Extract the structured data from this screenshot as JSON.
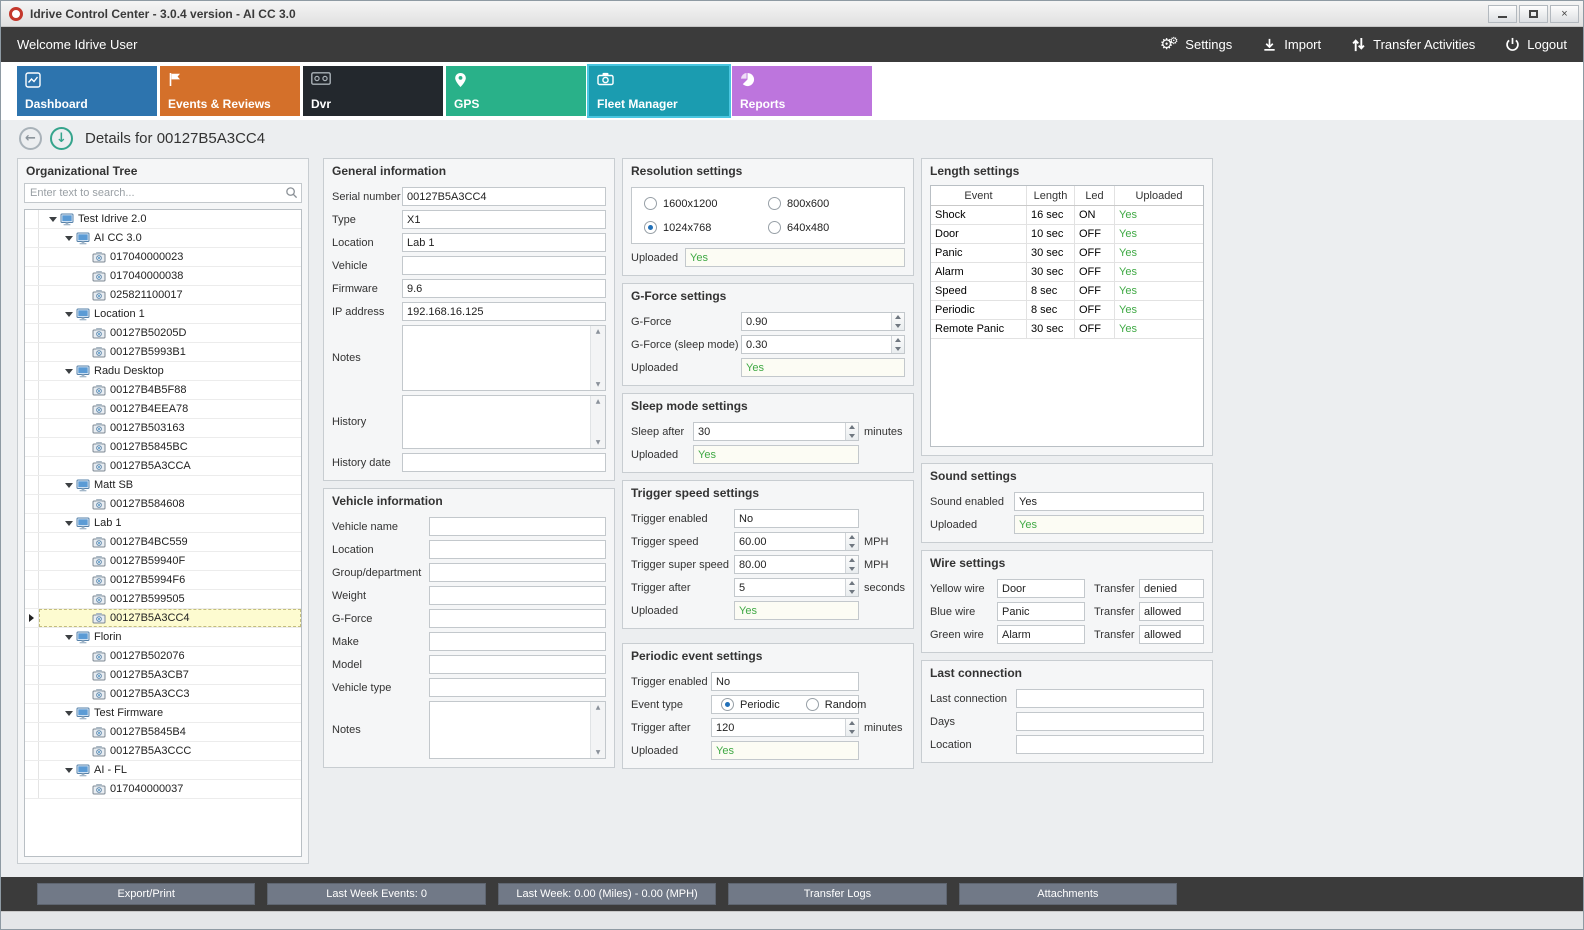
{
  "window": {
    "title": "Idrive Control Center - 3.0.4 version - AI CC 3.0"
  },
  "topbar": {
    "welcome": "Welcome Idrive User",
    "actions": [
      {
        "id": "settings",
        "label": "Settings"
      },
      {
        "id": "import",
        "label": "Import"
      },
      {
        "id": "transfer-activities",
        "label": "Transfer Activities"
      },
      {
        "id": "logout",
        "label": "Logout"
      }
    ]
  },
  "tabs": [
    {
      "id": "dashboard",
      "label": "Dashboard",
      "color": "#2d74ae",
      "active": false
    },
    {
      "id": "events-reviews",
      "label": "Events & Reviews",
      "color": "#d4702a",
      "active": false
    },
    {
      "id": "dvr",
      "label": "Dvr",
      "color": "#23282d",
      "active": false
    },
    {
      "id": "gps",
      "label": "GPS",
      "color": "#29b189",
      "active": false
    },
    {
      "id": "fleet-manager",
      "label": "Fleet Manager",
      "color": "#1b9cb0",
      "active": true
    },
    {
      "id": "reports",
      "label": "Reports",
      "color": "#bd75dd",
      "active": false
    }
  ],
  "details_header": {
    "title": "Details for 00127B5A3CC4"
  },
  "org_tree": {
    "title": "Organizational Tree",
    "search_placeholder": "Enter text to search...",
    "items": [
      {
        "label": "Test Idrive 2.0",
        "level": 0,
        "type": "group"
      },
      {
        "label": "AI CC 3.0",
        "level": 1,
        "type": "group"
      },
      {
        "label": "017040000023",
        "level": 2,
        "type": "device"
      },
      {
        "label": "017040000038",
        "level": 2,
        "type": "device"
      },
      {
        "label": "025821100017",
        "level": 2,
        "type": "device"
      },
      {
        "label": "Location 1",
        "level": 1,
        "type": "group"
      },
      {
        "label": "00127B50205D",
        "level": 2,
        "type": "device"
      },
      {
        "label": "00127B5993B1",
        "level": 2,
        "type": "device"
      },
      {
        "label": "Radu Desktop",
        "level": 1,
        "type": "group"
      },
      {
        "label": "00127B4B5F88",
        "level": 2,
        "type": "device"
      },
      {
        "label": "00127B4EEA78",
        "level": 2,
        "type": "device"
      },
      {
        "label": "00127B503163",
        "level": 2,
        "type": "device"
      },
      {
        "label": "00127B5845BC",
        "level": 2,
        "type": "device"
      },
      {
        "label": "00127B5A3CCA",
        "level": 2,
        "type": "device"
      },
      {
        "label": "Matt SB",
        "level": 1,
        "type": "group"
      },
      {
        "label": "00127B584608",
        "level": 2,
        "type": "device"
      },
      {
        "label": "Lab 1",
        "level": 1,
        "type": "group"
      },
      {
        "label": "00127B4BC559",
        "level": 2,
        "type": "device"
      },
      {
        "label": "00127B59940F",
        "level": 2,
        "type": "device"
      },
      {
        "label": "00127B5994F6",
        "level": 2,
        "type": "device"
      },
      {
        "label": "00127B599505",
        "level": 2,
        "type": "device"
      },
      {
        "label": "00127B5A3CC4",
        "level": 2,
        "type": "device",
        "selected": true
      },
      {
        "label": "Florin",
        "level": 1,
        "type": "group"
      },
      {
        "label": "00127B502076",
        "level": 2,
        "type": "device"
      },
      {
        "label": "00127B5A3CB7",
        "level": 2,
        "type": "device"
      },
      {
        "label": "00127B5A3CC3",
        "level": 2,
        "type": "device"
      },
      {
        "label": "Test Firmware",
        "level": 1,
        "type": "group"
      },
      {
        "label": "00127B5845B4",
        "level": 2,
        "type": "device"
      },
      {
        "label": "00127B5A3CCC",
        "level": 2,
        "type": "device"
      },
      {
        "label": "AI - FL",
        "level": 1,
        "type": "group"
      },
      {
        "label": "017040000037",
        "level": 2,
        "type": "device"
      }
    ]
  },
  "general_info": {
    "title": "General information",
    "fields": [
      {
        "label": "Serial number",
        "value": "00127B5A3CC4",
        "type": "text"
      },
      {
        "label": "Type",
        "value": "X1",
        "type": "text"
      },
      {
        "label": "Location",
        "value": "Lab 1",
        "type": "text"
      },
      {
        "label": "Vehicle",
        "value": "",
        "type": "text"
      },
      {
        "label": "Firmware",
        "value": "9.6",
        "type": "text"
      },
      {
        "label": "IP address",
        "value": "192.168.16.125",
        "type": "text"
      },
      {
        "label": "Notes",
        "value": "",
        "type": "textarea"
      },
      {
        "label": "History",
        "value": "",
        "type": "textarea"
      },
      {
        "label": "History date",
        "value": "",
        "type": "text"
      }
    ]
  },
  "vehicle_info": {
    "title": "Vehicle information",
    "fields": [
      {
        "label": "Vehicle name",
        "value": "",
        "type": "text"
      },
      {
        "label": "Location",
        "value": "",
        "type": "text"
      },
      {
        "label": "Group/department",
        "value": "",
        "type": "text"
      },
      {
        "label": "Weight",
        "value": "",
        "type": "text"
      },
      {
        "label": "G-Force",
        "value": "",
        "type": "text"
      },
      {
        "label": "Make",
        "value": "",
        "type": "text"
      },
      {
        "label": "Model",
        "value": "",
        "type": "text"
      },
      {
        "label": "Vehicle type",
        "value": "",
        "type": "text"
      },
      {
        "label": "Notes",
        "value": "",
        "type": "textarea"
      }
    ]
  },
  "resolution_settings": {
    "title": "Resolution settings",
    "options": [
      {
        "label": "1600x1200",
        "checked": false
      },
      {
        "label": "800x600",
        "checked": false
      },
      {
        "label": "1024x768",
        "checked": true
      },
      {
        "label": "640x480",
        "checked": false
      }
    ],
    "uploaded": {
      "label": "Uploaded",
      "value": "Yes"
    }
  },
  "gforce_settings": {
    "title": "G-Force settings",
    "fields": [
      {
        "label": "G-Force",
        "value": "0.90",
        "type": "text",
        "spinner": true
      },
      {
        "label": "G-Force (sleep mode)",
        "value": "0.30",
        "type": "text",
        "spinner": true
      },
      {
        "label": "Uploaded",
        "value": "Yes",
        "type": "text",
        "green": true
      }
    ]
  },
  "sleep_settings": {
    "title": "Sleep mode settings",
    "fields": [
      {
        "label": "Sleep after",
        "value": "30",
        "type": "text",
        "spinner": true,
        "suffix": "minutes"
      },
      {
        "label": "Uploaded",
        "value": "Yes",
        "type": "text",
        "green": true
      }
    ]
  },
  "trigger_speed_settings": {
    "title": "Trigger speed settings",
    "fields": [
      {
        "label": "Trigger enabled",
        "value": "No",
        "type": "text"
      },
      {
        "label": "Trigger speed",
        "value": "60.00",
        "type": "text",
        "spinner": true,
        "suffix": "MPH"
      },
      {
        "label": "Trigger super speed",
        "value": "80.00",
        "type": "text",
        "spinner": true,
        "suffix": "MPH"
      },
      {
        "label": "Trigger after",
        "value": "5",
        "type": "text",
        "spinner": true,
        "suffix": "seconds"
      },
      {
        "label": "Uploaded",
        "value": "Yes",
        "type": "text",
        "green": true
      }
    ]
  },
  "periodic_settings": {
    "title": "Periodic event settings",
    "fields": [
      {
        "label": "Trigger enabled",
        "value": "No",
        "type": "text"
      },
      {
        "label": "Event type",
        "type": "radios",
        "options": [
          {
            "label": "Periodic",
            "checked": true
          },
          {
            "label": "Random",
            "checked": false
          }
        ]
      },
      {
        "label": "Trigger after",
        "value": "120",
        "type": "text",
        "spinner": true,
        "suffix": "minutes"
      },
      {
        "label": "Uploaded",
        "value": "Yes",
        "type": "text",
        "green": true
      }
    ]
  },
  "length_settings": {
    "title": "Length settings",
    "columns": [
      "Event",
      "Length",
      "Led",
      "Uploaded"
    ],
    "rows": [
      [
        "Shock",
        "16 sec",
        "ON",
        "Yes"
      ],
      [
        "Door",
        "10 sec",
        "OFF",
        "Yes"
      ],
      [
        "Panic",
        "30 sec",
        "OFF",
        "Yes"
      ],
      [
        "Alarm",
        "30 sec",
        "OFF",
        "Yes"
      ],
      [
        "Speed",
        "8 sec",
        "OFF",
        "Yes"
      ],
      [
        "Periodic",
        "8 sec",
        "OFF",
        "Yes"
      ],
      [
        "Remote Panic",
        "30 sec",
        "OFF",
        "Yes"
      ]
    ]
  },
  "sound_settings": {
    "title": "Sound settings",
    "fields": [
      {
        "label": "Sound enabled",
        "value": "Yes",
        "type": "text"
      },
      {
        "label": "Uploaded",
        "value": "Yes",
        "type": "text",
        "green": true
      }
    ]
  },
  "wire_settings": {
    "title": "Wire settings",
    "transfer_label": "Transfer",
    "rows": [
      {
        "label": "Yellow wire",
        "value": "Door",
        "transfer": "denied"
      },
      {
        "label": "Blue wire",
        "value": "Panic",
        "transfer": "allowed"
      },
      {
        "label": "Green wire",
        "value": "Alarm",
        "transfer": "allowed"
      }
    ]
  },
  "last_connection": {
    "title": "Last connection",
    "fields": [
      {
        "label": "Last connection",
        "value": "",
        "type": "text"
      },
      {
        "label": "Days",
        "value": "",
        "type": "text"
      },
      {
        "label": "Location",
        "value": "",
        "type": "text"
      }
    ]
  },
  "bottom_bar": {
    "buttons": [
      "Export/Print",
      "Last Week Events: 0",
      "Last Week: 0.00 (Miles) - 0.00 (MPH)",
      "Transfer Logs",
      "Attachments"
    ]
  },
  "icons": {
    "app_logo": "red-ring",
    "minimize": "–",
    "maximize": "▢",
    "close": "×",
    "settings": "⚙",
    "import": "download-arrow-tray",
    "transfer_activities": "up-down-arrows",
    "logout": "power-symbol",
    "back": "←",
    "scroll_down": "↓",
    "search": "magnifier",
    "tree_group": "computer-monitor",
    "tree_device": "camera",
    "expanded_node": "down-triangle",
    "selected_row": "right-triangle"
  },
  "colors": {
    "value_green": "#3fa944",
    "topbar_bg": "#3b3b3b",
    "active_tab_border": "#4ac6e0",
    "selected_row_bg": "#fdfbd0",
    "bottom_button_bg": "#717987"
  }
}
